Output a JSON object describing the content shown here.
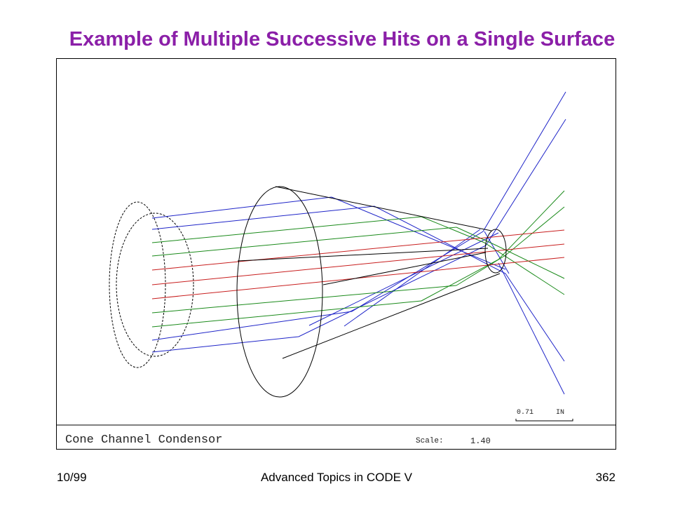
{
  "slide": {
    "title": "Example of Multiple Successive Hits on a Single Surface",
    "footer_left": "10/99",
    "footer_center": "Advanced Topics in CODE V",
    "footer_right": "362"
  },
  "plot": {
    "title": "Cone Channel Condensor",
    "scale_label": "Scale:",
    "scale_value": "1.40",
    "scalebar_value": "0.71",
    "scalebar_unit": "IN"
  },
  "colors": {
    "title": "#8b1fa8",
    "ray_blue": "#1e24c8",
    "ray_green": "#1a8a1a",
    "ray_red": "#c81e1e",
    "outline": "#000000"
  }
}
